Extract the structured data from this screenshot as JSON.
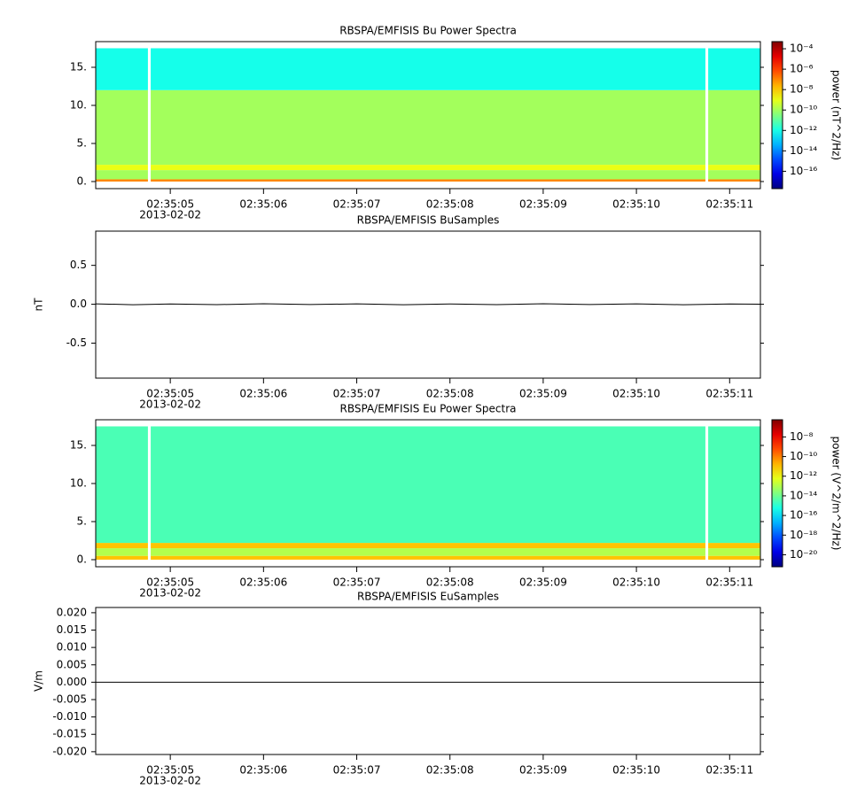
{
  "chart_data": [
    {
      "type": "spectrogram",
      "title": "RBSPA/EMFISIS  Bu Power Spectra",
      "date_label": "2013-02-02",
      "colorbar_label": "power (nT^2/Hz)",
      "colormap": "rainbow",
      "log_color": true,
      "x_bins": [
        4.2,
        4.76,
        4.79,
        10.74,
        10.77,
        11.33
      ],
      "y_bins": [
        0,
        0.3,
        1.5,
        2.2,
        12,
        17.5
      ],
      "values": [
        [
          1e-07,
          null,
          1e-07,
          null,
          1e-07
        ],
        [
          1e-10,
          null,
          1e-10,
          null,
          1e-10
        ],
        [
          1e-09,
          null,
          1e-09,
          null,
          1e-09
        ],
        [
          1e-10,
          null,
          1e-10,
          null,
          1e-10
        ],
        [
          1e-12,
          null,
          1e-12,
          null,
          1e-12
        ]
      ],
      "xlim": [
        4.2,
        11.33
      ],
      "xticks": [
        {
          "value": 5,
          "label": "02:35:05"
        },
        {
          "value": 6,
          "label": "02:35:06"
        },
        {
          "value": 7,
          "label": "02:35:07"
        },
        {
          "value": 8,
          "label": "02:35:08"
        },
        {
          "value": 9,
          "label": "02:35:09"
        },
        {
          "value": 10,
          "label": "02:35:10"
        },
        {
          "value": 11,
          "label": "02:35:11"
        }
      ],
      "ylim": [
        -0.93,
        18.37
      ],
      "yticks": [
        {
          "value": 0,
          "label": "0."
        },
        {
          "value": 5,
          "label": "5."
        },
        {
          "value": 10,
          "label": "10."
        },
        {
          "value": 15,
          "label": "15."
        }
      ],
      "clim": [
        2e-18,
        0.0005
      ],
      "cticks": [
        {
          "value": 1e-16,
          "label": "10⁻¹⁶"
        },
        {
          "value": 1e-14,
          "label": "10⁻¹⁴"
        },
        {
          "value": 1e-12,
          "label": "10⁻¹²"
        },
        {
          "value": 1e-10,
          "label": "10⁻¹⁰"
        },
        {
          "value": 1e-08,
          "label": "10⁻⁸"
        },
        {
          "value": 1e-06,
          "label": "10⁻⁶"
        },
        {
          "value": 0.0001,
          "label": "10⁻⁴"
        }
      ]
    },
    {
      "type": "line",
      "title": "RBSPA/EMFISIS  BuSamples",
      "date_label": "2013-02-02",
      "ylabel": "nT",
      "x": [
        4.2,
        4.6,
        5.0,
        5.5,
        6.0,
        6.5,
        7.0,
        7.5,
        8.0,
        8.5,
        9.0,
        9.5,
        10.0,
        10.5,
        11.0,
        11.33
      ],
      "series": [
        {
          "color": "#000000",
          "values": [
            0.005,
            -0.006,
            0.004,
            -0.005,
            0.006,
            -0.004,
            0.005,
            -0.006,
            0.004,
            -0.005,
            0.006,
            -0.004,
            0.005,
            -0.006,
            0.004,
            0.0
          ]
        }
      ],
      "xlim": [
        4.2,
        11.33
      ],
      "xticks": [
        {
          "value": 5,
          "label": "02:35:05"
        },
        {
          "value": 6,
          "label": "02:35:06"
        },
        {
          "value": 7,
          "label": "02:35:07"
        },
        {
          "value": 8,
          "label": "02:35:08"
        },
        {
          "value": 9,
          "label": "02:35:09"
        },
        {
          "value": 10,
          "label": "02:35:10"
        },
        {
          "value": 11,
          "label": "02:35:11"
        }
      ],
      "ylim": [
        -0.95,
        0.94
      ],
      "yticks": [
        -0.5,
        {
          "value": 0,
          "label": "0.0"
        },
        0.5
      ]
    },
    {
      "type": "spectrogram",
      "title": "RBSPA/EMFISIS  Eu Power Spectra",
      "date_label": "2013-02-02",
      "colorbar_label": "power (V^2/m^2/Hz)",
      "colormap": "rainbow",
      "log_color": true,
      "x_bins": [
        4.2,
        4.76,
        4.79,
        10.74,
        10.77,
        11.33
      ],
      "y_bins": [
        0,
        0.5,
        1.5,
        2.2,
        17.5
      ],
      "values": [
        [
          1e-11,
          null,
          1e-11,
          null,
          1e-11
        ],
        [
          1e-13,
          null,
          1e-13,
          null,
          1e-13
        ],
        [
          1e-11,
          null,
          1e-11,
          null,
          1e-11
        ],
        [
          3e-15,
          null,
          3e-15,
          null,
          3e-15
        ]
      ],
      "xlim": [
        4.2,
        11.33
      ],
      "xticks": [
        {
          "value": 5,
          "label": "02:35:05"
        },
        {
          "value": 6,
          "label": "02:35:06"
        },
        {
          "value": 7,
          "label": "02:35:07"
        },
        {
          "value": 8,
          "label": "02:35:08"
        },
        {
          "value": 9,
          "label": "02:35:09"
        },
        {
          "value": 10,
          "label": "02:35:10"
        },
        {
          "value": 11,
          "label": "02:35:11"
        }
      ],
      "ylim": [
        -0.93,
        18.37
      ],
      "yticks": [
        {
          "value": 0,
          "label": "0."
        },
        {
          "value": 5,
          "label": "5."
        },
        {
          "value": 10,
          "label": "10."
        },
        {
          "value": 15,
          "label": "15."
        }
      ],
      "clim": [
        6e-22,
        5.6e-07
      ],
      "cticks": [
        {
          "value": 1e-20,
          "label": "10⁻²⁰"
        },
        {
          "value": 1e-18,
          "label": "10⁻¹⁸"
        },
        {
          "value": 1e-16,
          "label": "10⁻¹⁶"
        },
        {
          "value": 1e-14,
          "label": "10⁻¹⁴"
        },
        {
          "value": 1e-12,
          "label": "10⁻¹²"
        },
        {
          "value": 1e-10,
          "label": "10⁻¹⁰"
        },
        {
          "value": 1e-08,
          "label": "10⁻⁸"
        }
      ]
    },
    {
      "type": "line",
      "title": "RBSPA/EMFISIS  EuSamples",
      "date_label": "2013-02-02",
      "ylabel": "V/m",
      "x": [
        4.2,
        5.0,
        6.0,
        7.0,
        8.0,
        9.0,
        10.0,
        11.0,
        11.33
      ],
      "series": [
        {
          "color": "#000000",
          "values": [
            0,
            0,
            0,
            0,
            0,
            0,
            0,
            0,
            0
          ]
        }
      ],
      "xlim": [
        4.2,
        11.33
      ],
      "xticks": [
        {
          "value": 5,
          "label": "02:35:05"
        },
        {
          "value": 6,
          "label": "02:35:06"
        },
        {
          "value": 7,
          "label": "02:35:07"
        },
        {
          "value": 8,
          "label": "02:35:08"
        },
        {
          "value": 9,
          "label": "02:35:09"
        },
        {
          "value": 10,
          "label": "02:35:10"
        },
        {
          "value": 11,
          "label": "02:35:11"
        }
      ],
      "ylim": [
        -0.0208,
        0.0215
      ],
      "yticks": [
        {
          "value": -0.02,
          "label": "-0.020"
        },
        {
          "value": -0.015,
          "label": "-0.015"
        },
        {
          "value": -0.01,
          "label": "-0.010"
        },
        {
          "value": -0.005,
          "label": "-0.005"
        },
        {
          "value": 0,
          "label": "0.000"
        },
        {
          "value": 0.005,
          "label": "0.005"
        },
        {
          "value": 0.01,
          "label": "0.010"
        },
        {
          "value": 0.015,
          "label": "0.015"
        },
        {
          "value": 0.02,
          "label": "0.020"
        }
      ]
    }
  ]
}
